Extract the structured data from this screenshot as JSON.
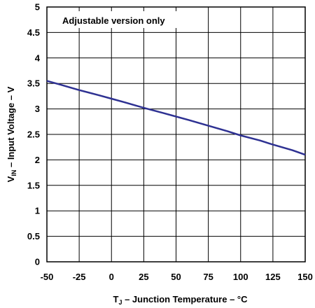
{
  "chart_data": {
    "type": "line",
    "xlabel_main": "T",
    "xlabel_sub": "J",
    "xlabel_rest": " – Junction Temperature – °C",
    "ylabel_main": "V",
    "ylabel_sub": "IN",
    "ylabel_rest": " – Input Voltage – V",
    "annotation": "Adjustable version only",
    "xlim": [
      -50,
      150
    ],
    "ylim": [
      0,
      5
    ],
    "xticks": [
      -50,
      -25,
      0,
      25,
      50,
      75,
      100,
      125,
      150
    ],
    "yticks": [
      0,
      0.5,
      1,
      1.5,
      2,
      2.5,
      3,
      3.5,
      4,
      4.5,
      5
    ],
    "grid": true,
    "line_color": "#2e3192",
    "series": [
      {
        "x": [
          -50,
          -40,
          -25,
          -10,
          0,
          10,
          25,
          40,
          50,
          60,
          75,
          90,
          100,
          115,
          125,
          140,
          150
        ],
        "y": [
          3.55,
          3.48,
          3.37,
          3.27,
          3.2,
          3.13,
          3.02,
          2.92,
          2.85,
          2.78,
          2.67,
          2.56,
          2.48,
          2.38,
          2.3,
          2.19,
          2.1
        ]
      }
    ]
  }
}
